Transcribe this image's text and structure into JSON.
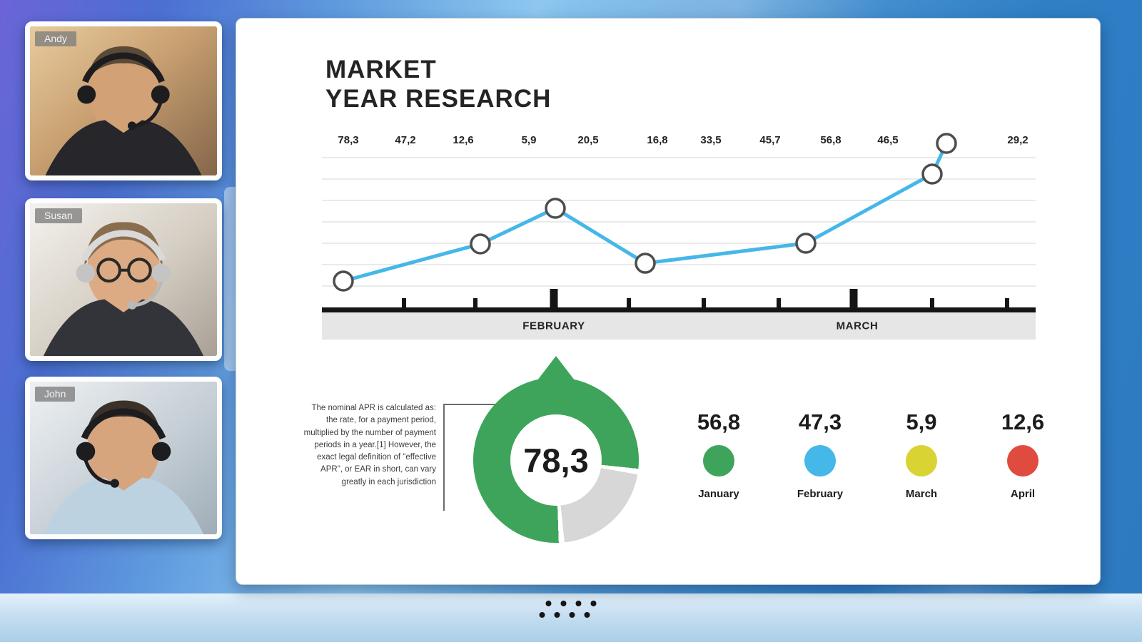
{
  "app": {
    "name": "video-conference-presentation"
  },
  "participants": [
    {
      "name": "Andy"
    },
    {
      "name": "Susan"
    },
    {
      "name": "John"
    }
  ],
  "slide": {
    "title_line1": "MARKET",
    "title_line2": "YEAR RESEARCH"
  },
  "chart_data": [
    {
      "type": "line",
      "title": "MARKET YEAR RESEARCH",
      "top_labels": [
        "78,3",
        "47,2",
        "12,6",
        "5,9",
        "20,5",
        "16,8",
        "33,5",
        "45,7",
        "56,8",
        "46,5",
        "29,2"
      ],
      "top_label_positions": [
        0.037,
        0.117,
        0.198,
        0.29,
        0.373,
        0.47,
        0.545,
        0.628,
        0.713,
        0.793,
        0.975
      ],
      "x_axis_labels": [
        "FEBRUARY",
        "MARCH"
      ],
      "x_axis_label_positions": [
        0.325,
        0.75
      ],
      "points": [
        {
          "x": 0.03,
          "y": 0.812
        },
        {
          "x": 0.222,
          "y": 0.604
        },
        {
          "x": 0.327,
          "y": 0.404
        },
        {
          "x": 0.453,
          "y": 0.712
        },
        {
          "x": 0.678,
          "y": 0.6
        },
        {
          "x": 0.855,
          "y": 0.212
        },
        {
          "x": 0.875,
          "y": 0.04
        }
      ],
      "ticks": [
        {
          "x": 0.115
        },
        {
          "x": 0.215
        },
        {
          "x": 0.325,
          "major": true
        },
        {
          "x": 0.43
        },
        {
          "x": 0.535
        },
        {
          "x": 0.64
        },
        {
          "x": 0.745,
          "major": true
        },
        {
          "x": 0.855
        },
        {
          "x": 0.96
        }
      ],
      "line_color": "#45b7e8",
      "marker_style": "open-circle",
      "grid": true,
      "legend": "none"
    },
    {
      "type": "donut",
      "value": 78.3,
      "display_value": "78,3",
      "segment_color": "#3fa45b",
      "remainder_color": "#d7d7d7",
      "annotation": "The nominal APR is calculated as: the rate, for a payment period, multiplied by the number of payment periods in a year.[1] However, the exact legal definition of \"effective APR\", or EAR in short, can vary greatly in each jurisdiction"
    },
    {
      "type": "stat-circles",
      "items": [
        {
          "value": "56,8",
          "label": "January",
          "color": "#3fa45b"
        },
        {
          "value": "47,3",
          "label": "February",
          "color": "#45b7e8"
        },
        {
          "value": "5,9",
          "label": "March",
          "color": "#d9d334"
        },
        {
          "value": "12,6",
          "label": "April",
          "color": "#e04b40"
        }
      ]
    }
  ]
}
